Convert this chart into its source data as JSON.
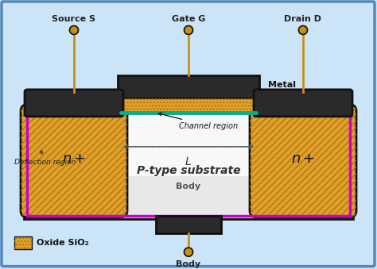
{
  "bg_color": "#cce4f7",
  "border_color": "#6699cc",
  "colors": {
    "metal_dark": "#2a2a2a",
    "oxide_fill": "#dfa030",
    "oxide_hatch": "#b07800",
    "substrate_fill": "#d8d8d8",
    "substrate_top": "#f0f0f0",
    "channel_teal": "#00b090",
    "magenta": "#cc00cc",
    "black": "#111111",
    "gold_wire": "#c89010",
    "white": "#ffffff",
    "n_region_fill": "#e0a030"
  },
  "labels": {
    "source": "Source S",
    "gate": "Gate G",
    "drain": "Drain D",
    "metal": "Metal",
    "channel": "Channel region",
    "L": "L",
    "deflection": "Deflection region",
    "substrate": "P-type substrate",
    "body_center": "Body",
    "body_bottom": "Body",
    "oxide_legend": "Oxide SiO₂"
  }
}
